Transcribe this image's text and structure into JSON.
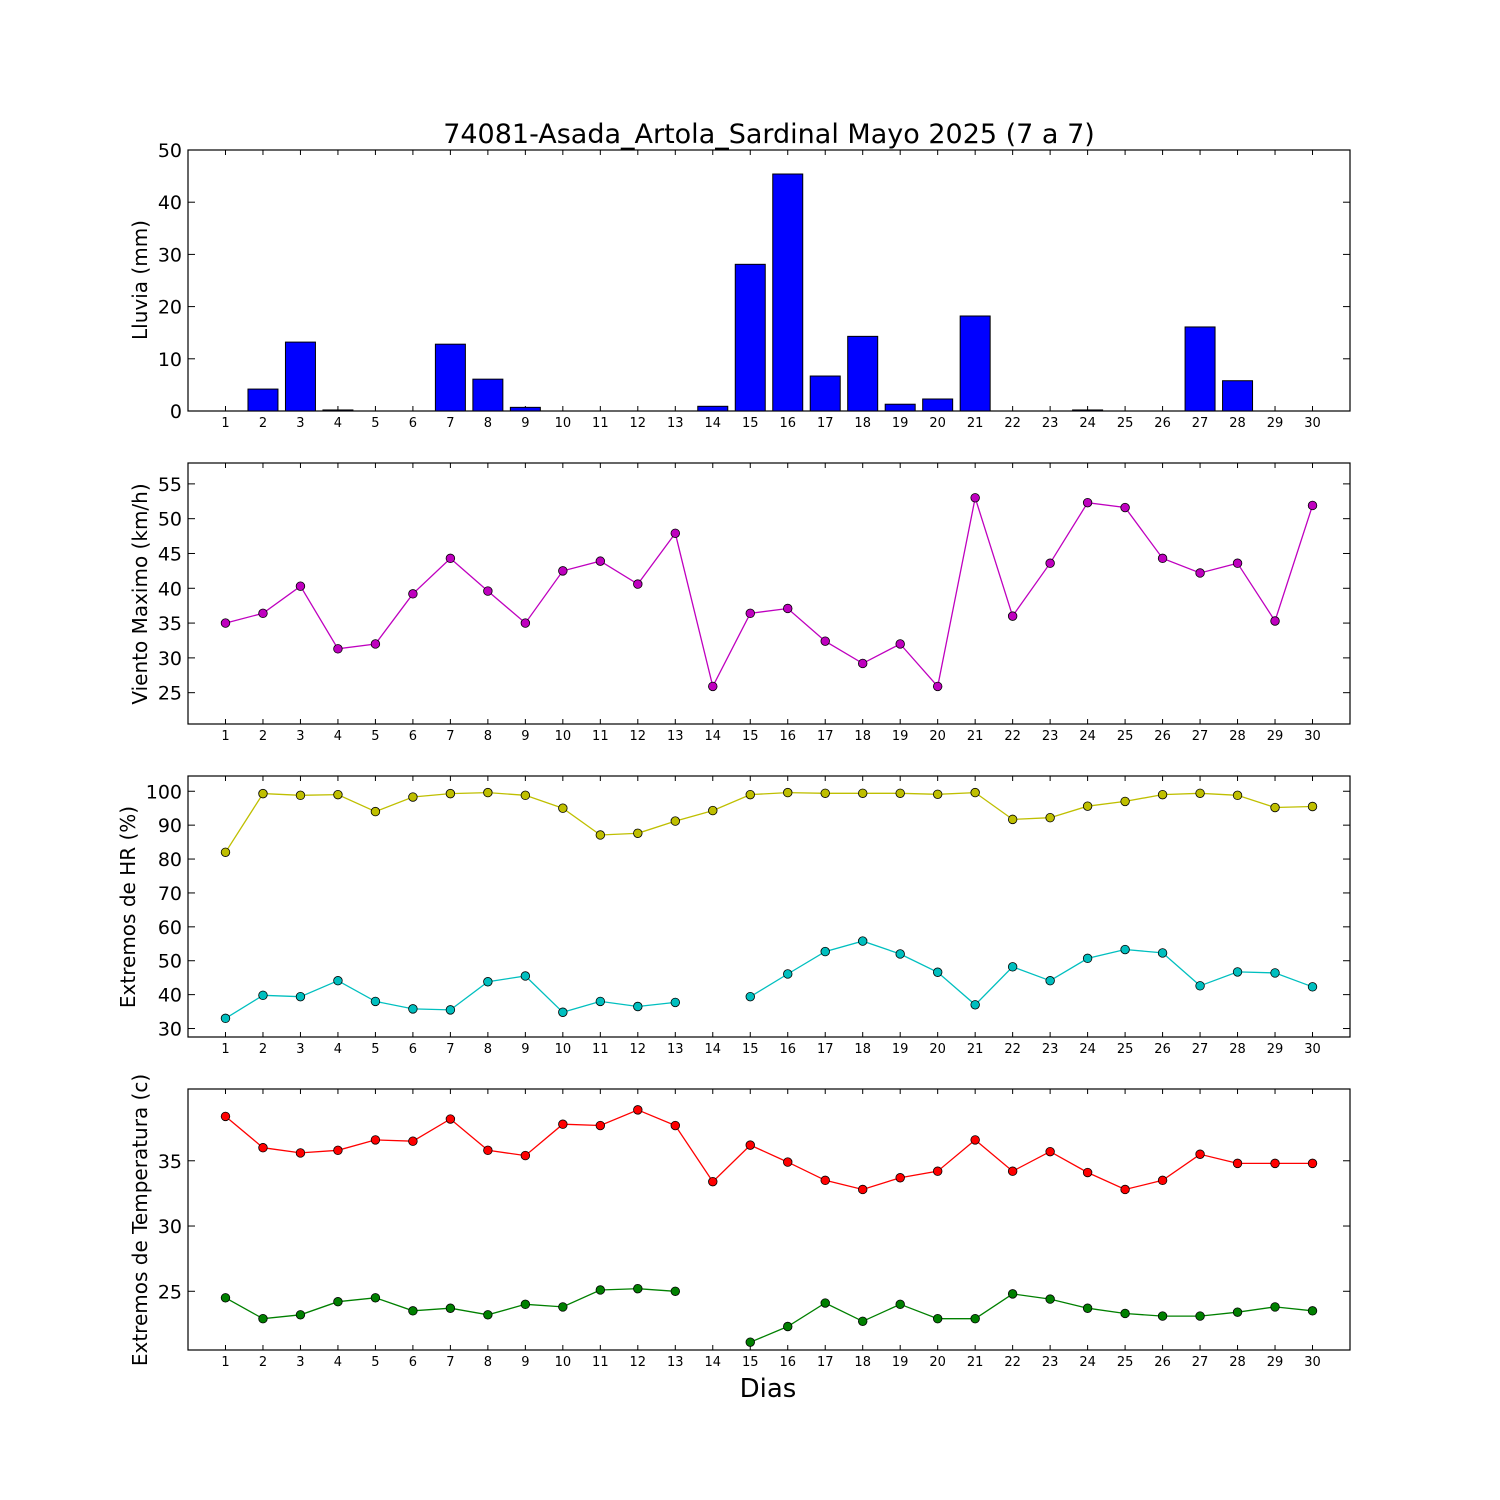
{
  "title": "74081-Asada_Artola_Sardinal Mayo 2025  (7 a 7)",
  "xlabel": "Dias",
  "colors": {
    "rain": "#0000ff",
    "wind": "#bf00bf",
    "hr_max": "#bfbf00",
    "hr_min": "#00bfbf",
    "temp_max": "#ff0000",
    "temp_min": "#008000"
  },
  "chart_data": [
    {
      "type": "bar",
      "ylabel": "Lluvia (mm)",
      "categories": [
        "1",
        "2",
        "3",
        "4",
        "5",
        "6",
        "7",
        "8",
        "9",
        "10",
        "11",
        "12",
        "13",
        "14",
        "15",
        "16",
        "17",
        "18",
        "19",
        "20",
        "21",
        "22",
        "23",
        "24",
        "25",
        "26",
        "27",
        "28",
        "29",
        "30"
      ],
      "ylim": [
        0,
        50
      ],
      "yticks": [
        0,
        10,
        20,
        30,
        40,
        50
      ],
      "series": [
        {
          "values": [
            0,
            4.2,
            13.2,
            0.2,
            0,
            0,
            12.8,
            6.1,
            0.7,
            0,
            0,
            0,
            0,
            0.9,
            28.1,
            45.4,
            6.7,
            14.3,
            1.3,
            2.3,
            18.2,
            0,
            0,
            0.2,
            0,
            0,
            16.1,
            5.8,
            0,
            0
          ]
        }
      ]
    },
    {
      "type": "line",
      "ylabel": "Viento Maximo (km/h)",
      "x": [
        1,
        2,
        3,
        4,
        5,
        6,
        7,
        8,
        9,
        10,
        11,
        12,
        13,
        14,
        15,
        16,
        17,
        18,
        19,
        20,
        21,
        22,
        23,
        24,
        25,
        26,
        27,
        28,
        29,
        30
      ],
      "ylim": [
        20.5,
        58
      ],
      "yticks": [
        25,
        30,
        35,
        40,
        45,
        50,
        55
      ],
      "series": [
        {
          "values": [
            35.0,
            36.4,
            40.3,
            31.3,
            32.0,
            39.2,
            44.3,
            39.6,
            35.0,
            42.5,
            43.9,
            40.6,
            47.9,
            25.9,
            36.4,
            37.1,
            32.4,
            29.2,
            32.0,
            25.9,
            53.0,
            36.0,
            43.6,
            52.3,
            51.6,
            44.3,
            42.2,
            43.6,
            35.3,
            51.9
          ]
        }
      ]
    },
    {
      "type": "line",
      "ylabel": "Extremos de HR (%)",
      "x": [
        1,
        2,
        3,
        4,
        5,
        6,
        7,
        8,
        9,
        10,
        11,
        12,
        13,
        14,
        15,
        16,
        17,
        18,
        19,
        20,
        21,
        22,
        23,
        24,
        25,
        26,
        27,
        28,
        29,
        30
      ],
      "ylim": [
        27.5,
        104.5
      ],
      "yticks": [
        30,
        40,
        50,
        60,
        70,
        80,
        90,
        100
      ],
      "series": [
        {
          "values": [
            82,
            99.3,
            98.8,
            99.0,
            94.0,
            98.3,
            99.3,
            99.6,
            98.8,
            95.0,
            87.1,
            87.6,
            91.2,
            94.3,
            99.0,
            99.6,
            99.4,
            99.4,
            99.4,
            99.1,
            99.6,
            91.7,
            92.2,
            95.6,
            97.0,
            99.0,
            99.4,
            98.8,
            95.2,
            95.5
          ]
        },
        {
          "values": [
            33,
            39.8,
            39.4,
            44.1,
            38.0,
            35.8,
            35.5,
            43.8,
            45.5,
            34.8,
            38.0,
            36.5,
            37.7,
            null,
            39.4,
            46.1,
            52.7,
            55.8,
            52.0,
            46.6,
            37.0,
            48.2,
            44.1,
            50.7,
            53.3,
            52.3,
            42.6,
            46.7,
            46.4,
            42.3
          ]
        }
      ]
    },
    {
      "type": "line",
      "ylabel": "Extremos de Temperatura (c)",
      "x": [
        1,
        2,
        3,
        4,
        5,
        6,
        7,
        8,
        9,
        10,
        11,
        12,
        13,
        14,
        15,
        16,
        17,
        18,
        19,
        20,
        21,
        22,
        23,
        24,
        25,
        26,
        27,
        28,
        29,
        30
      ],
      "ylim": [
        20.5,
        40.5
      ],
      "yticks": [
        25,
        30,
        35
      ],
      "series": [
        {
          "values": [
            38.4,
            36.0,
            35.6,
            35.8,
            36.6,
            36.5,
            38.2,
            35.8,
            35.4,
            37.8,
            37.7,
            38.9,
            37.7,
            33.4,
            36.2,
            34.9,
            33.5,
            32.8,
            33.7,
            34.2,
            36.6,
            34.2,
            35.7,
            34.1,
            32.8,
            33.5,
            35.5,
            34.8,
            34.8,
            34.8
          ]
        },
        {
          "values": [
            24.5,
            22.9,
            23.2,
            24.2,
            24.5,
            23.5,
            23.7,
            23.2,
            24.0,
            23.8,
            25.1,
            25.2,
            25.0,
            null,
            21.1,
            22.3,
            24.1,
            22.7,
            24.0,
            22.9,
            22.9,
            24.8,
            24.4,
            23.7,
            23.3,
            23.1,
            23.1,
            23.4,
            23.8,
            23.5
          ]
        }
      ]
    }
  ]
}
